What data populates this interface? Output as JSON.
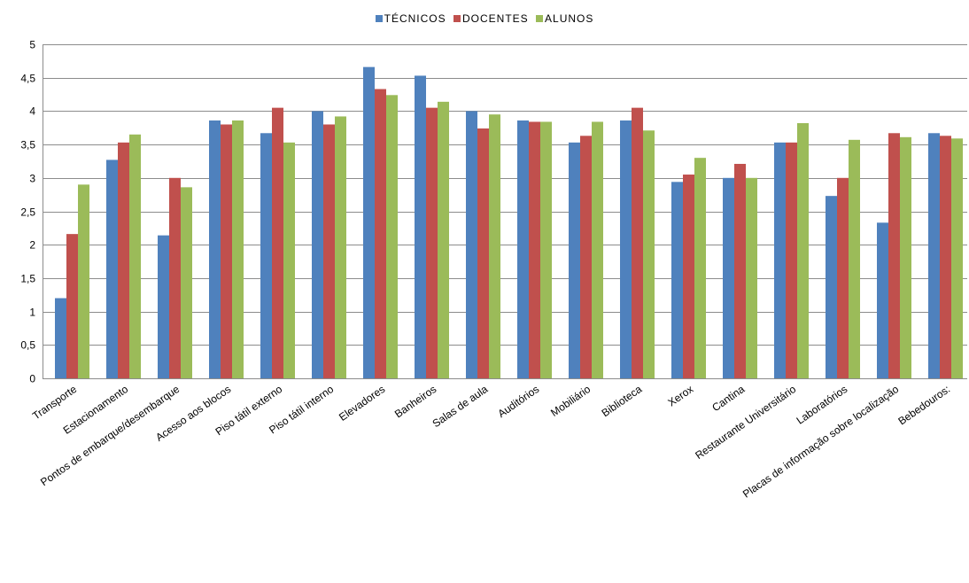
{
  "chart_data": {
    "type": "bar",
    "title": "",
    "xlabel": "",
    "ylabel": "",
    "ylim": [
      0,
      5
    ],
    "yticks": [
      "0",
      "0,5",
      "1",
      "1,5",
      "2",
      "2,5",
      "3",
      "3,5",
      "4",
      "4,5",
      "5"
    ],
    "grid": true,
    "legend_position": "top",
    "categories": [
      "Transporte",
      "Estacionamento",
      "Pontos de embarque/desembarque",
      "Acesso aos blocos",
      "Piso tátil externo",
      "Piso tátil interno",
      "Elevadores",
      "Banheiros",
      "Salas de aula",
      "Auditórios",
      "Mobiliário",
      "Biblioteca",
      "Xerox",
      "Cantina",
      "Restaurante Universitário",
      "Laboratórios",
      "Placas de informação sobre localização",
      "Bebedouros:"
    ],
    "series": [
      {
        "name": "TÉCNICOS",
        "color": "#4F81BD",
        "values": [
          1.2,
          3.27,
          2.14,
          3.86,
          3.67,
          4.0,
          4.66,
          4.53,
          4.0,
          3.86,
          3.53,
          3.86,
          2.94,
          3.0,
          3.53,
          2.73,
          2.33,
          3.67
        ]
      },
      {
        "name": "DOCENTES",
        "color": "#C0504D",
        "values": [
          2.16,
          3.53,
          3.0,
          3.8,
          4.05,
          3.8,
          4.33,
          4.05,
          3.74,
          3.84,
          3.63,
          4.05,
          3.05,
          3.21,
          3.53,
          3.0,
          3.67,
          3.63
        ]
      },
      {
        "name": "ALUNOS",
        "color": "#9BBB59",
        "values": [
          2.9,
          3.65,
          2.86,
          3.86,
          3.53,
          3.92,
          4.24,
          4.14,
          3.95,
          3.84,
          3.84,
          3.71,
          3.3,
          3.0,
          3.82,
          3.57,
          3.61,
          3.59
        ]
      }
    ]
  }
}
